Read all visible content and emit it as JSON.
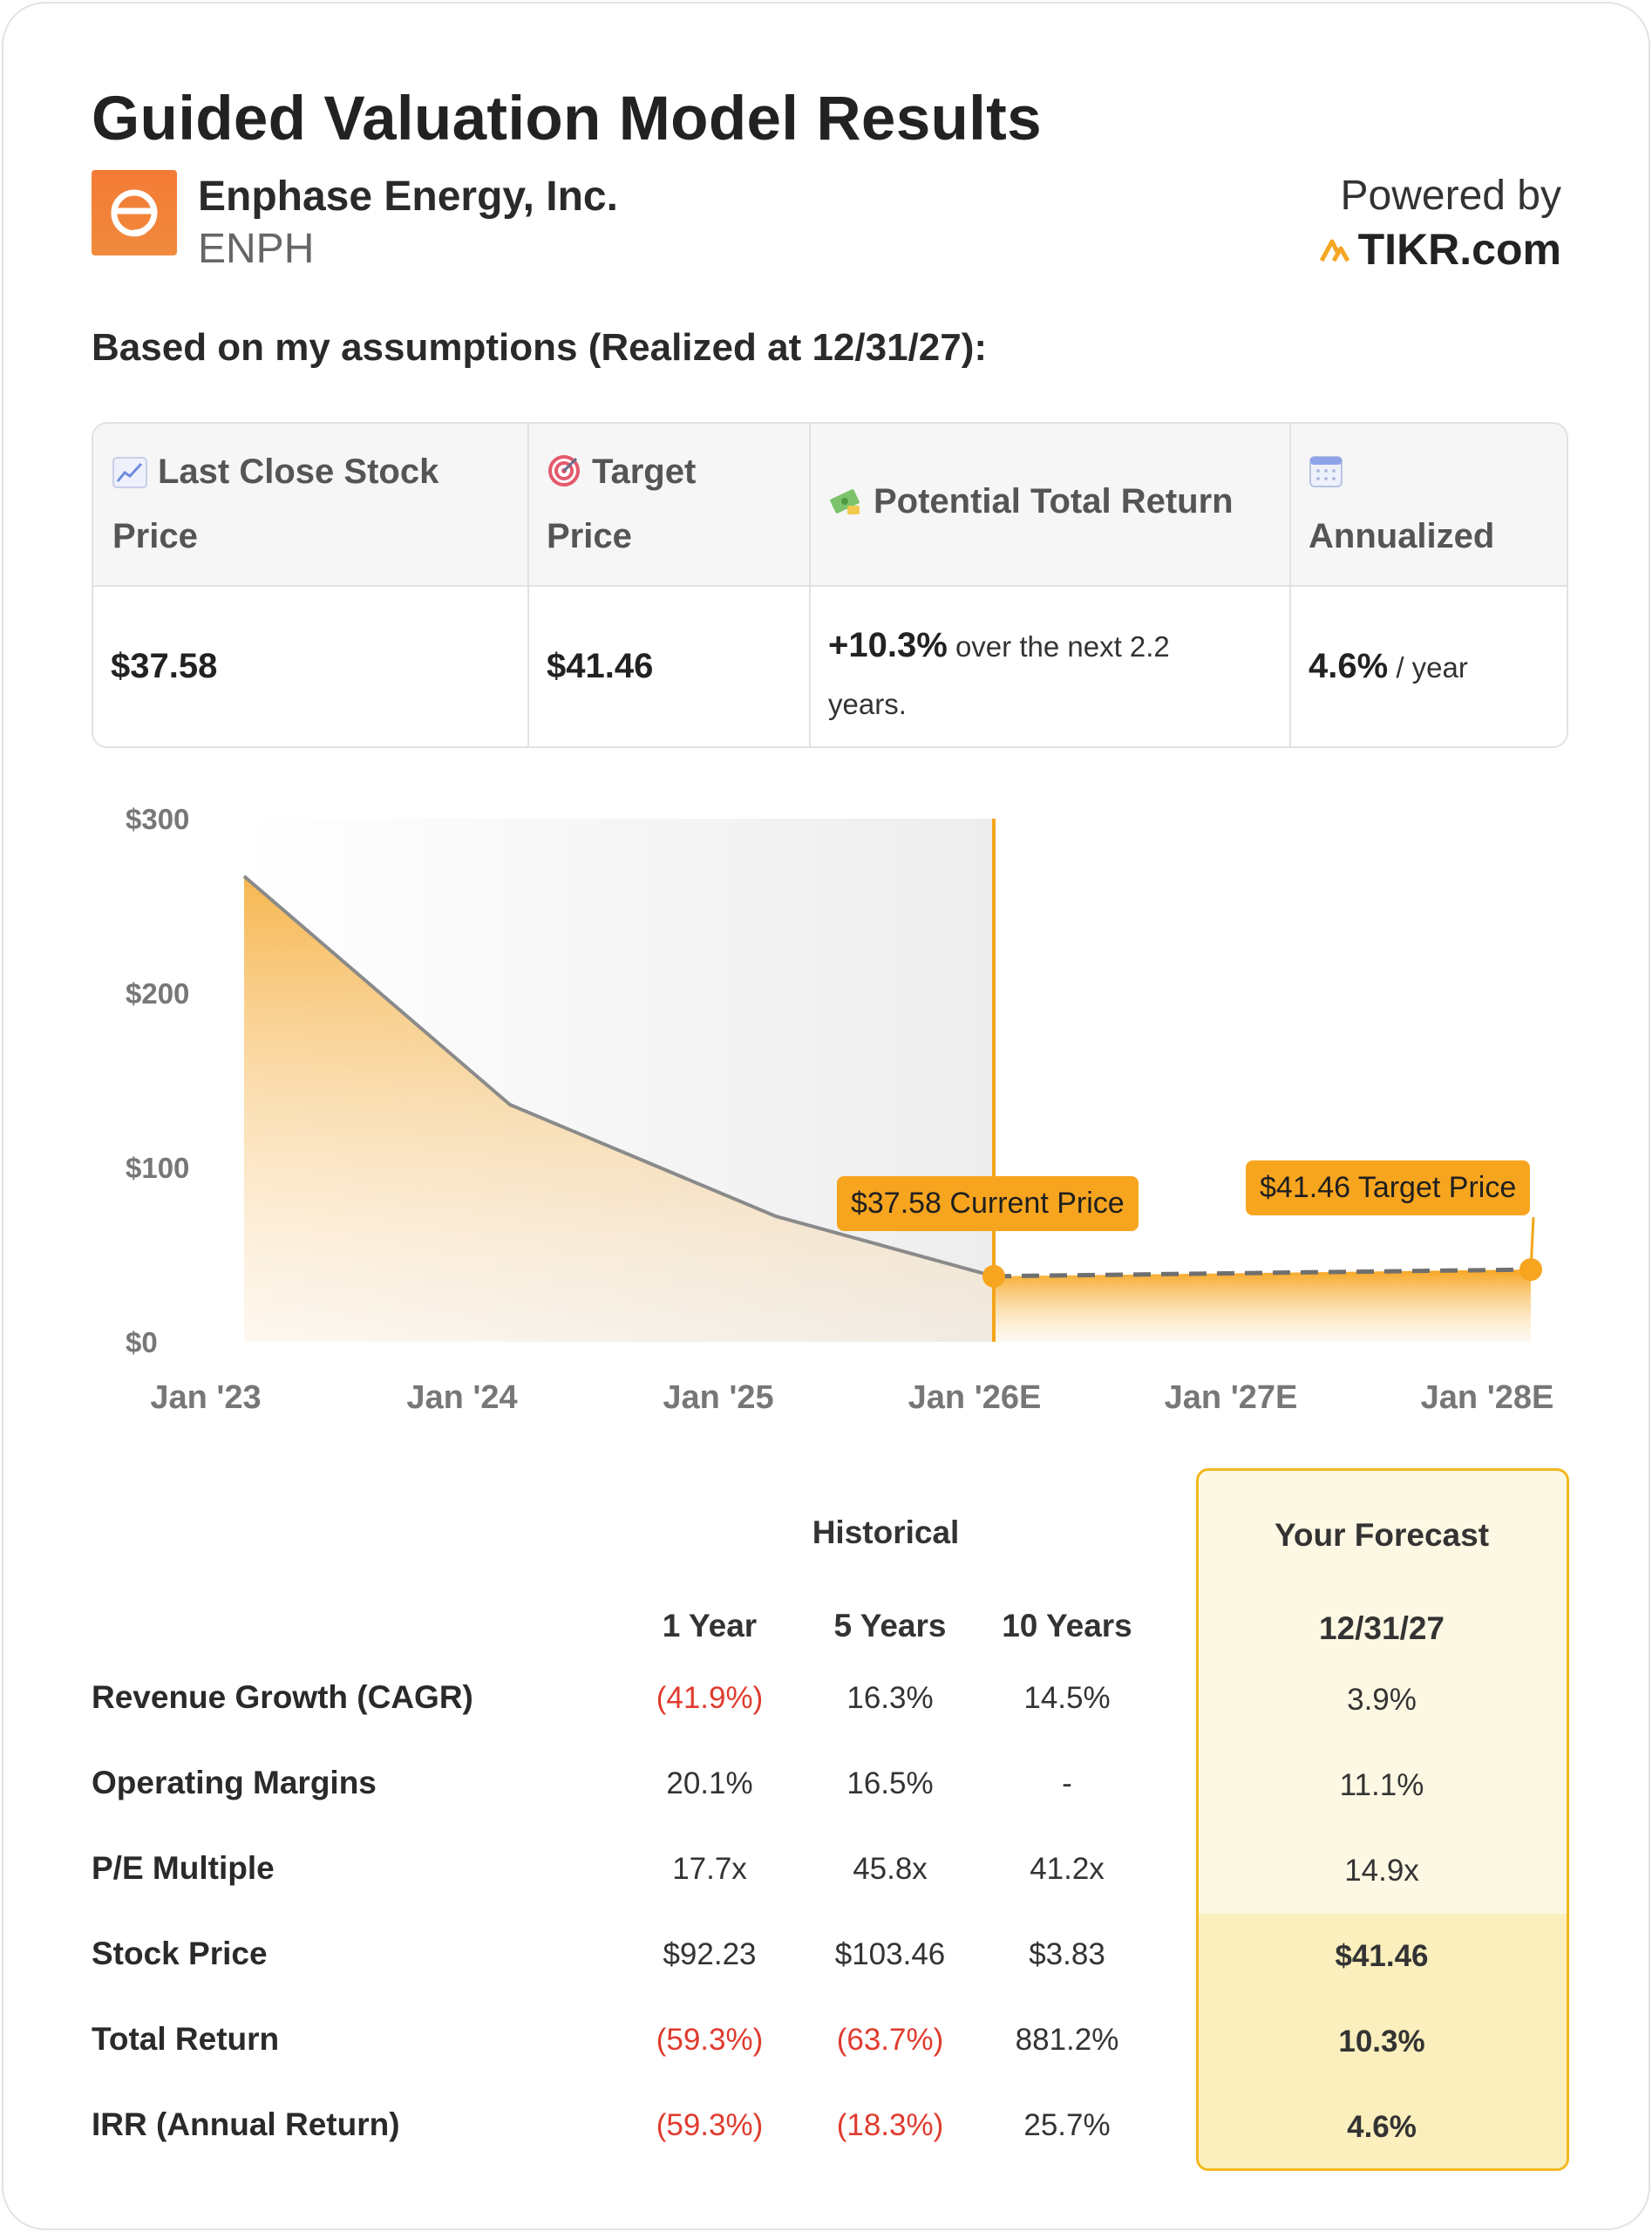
{
  "header": {
    "title": "Guided Valuation Model Results",
    "company_name": "Enphase Energy, Inc.",
    "ticker": "ENPH",
    "powered_by": "Powered by",
    "brand": "TIKR.com",
    "logo_icon": "enphase-logo-icon",
    "brand_icon": "tikr-logo-icon"
  },
  "assumptions_heading": "Based on my assumptions (Realized at 12/31/27):",
  "summary": {
    "headers": [
      {
        "icon": "line-chart-icon",
        "line1": "Last Close Stock",
        "line2": "Price"
      },
      {
        "icon": "target-icon",
        "line1": "Target",
        "line2": "Price"
      },
      {
        "icon": "money-icon",
        "line1": "Potential Total Return",
        "line2": ""
      },
      {
        "icon": "calendar-icon",
        "line1": "",
        "line2": "Annualized"
      }
    ],
    "last_close": "$37.58",
    "target_price": "$41.46",
    "total_return_value": "+10.3%",
    "total_return_suffix": " over the next 2.2",
    "total_return_suffix2": "years.",
    "annualized_value": "4.6%",
    "annualized_suffix": " / year"
  },
  "chart_data": {
    "type": "area",
    "title": "",
    "xlabel": "",
    "ylabel": "",
    "ylim": [
      0,
      300
    ],
    "y_ticks": [
      "$300",
      "$200",
      "$100",
      "$0"
    ],
    "y_tick_values": [
      300,
      200,
      100,
      0
    ],
    "x_ticks": [
      "Jan '23",
      "Jan '24",
      "Jan '25",
      "Jan '26E",
      "Jan '27E",
      "Jan '28E"
    ],
    "x_tick_values": [
      2023.0,
      2024.0,
      2025.0,
      2026.0,
      2027.0,
      2028.0
    ],
    "x_range": [
      2023.15,
      2027.99
    ],
    "series": [
      {
        "name": "Historical",
        "x": [
          2023.15,
          2024.15,
          2025.15,
          2025.97
        ],
        "values": [
          267,
          136,
          72,
          37.58
        ]
      },
      {
        "name": "Forecast",
        "x": [
          2025.97,
          2027.99
        ],
        "values": [
          37.58,
          41.46
        ]
      }
    ],
    "current_x": 2025.97,
    "annotations": [
      {
        "text": "$37.58 Current Price",
        "x": 2025.97,
        "y": 37.58
      },
      {
        "text": "$41.46 Target Price",
        "x": 2027.99,
        "y": 41.46
      }
    ]
  },
  "metrics": {
    "historical_heading": "Historical",
    "forecast_heading": "Your Forecast",
    "columns": [
      "1 Year",
      "5 Years",
      "10 Years"
    ],
    "forecast_column": "12/31/27",
    "rows": [
      {
        "label": "Revenue Growth (CAGR)",
        "values": [
          "(41.9%)",
          "16.3%",
          "14.5%"
        ],
        "forecast": "3.9%"
      },
      {
        "label": "Operating Margins",
        "values": [
          "20.1%",
          "16.5%",
          "-"
        ],
        "forecast": "11.1%"
      },
      {
        "label": "P/E Multiple",
        "values": [
          "17.7x",
          "45.8x",
          "41.2x"
        ],
        "forecast": "14.9x"
      },
      {
        "label": "Stock Price",
        "values": [
          "$92.23",
          "$103.46",
          "$3.83"
        ],
        "forecast": "$41.46"
      },
      {
        "label": "Total Return",
        "values": [
          "(59.3%)",
          "(63.7%)",
          "881.2%"
        ],
        "forecast": "10.3%"
      },
      {
        "label": "IRR (Annual Return)",
        "values": [
          "(59.3%)",
          "(18.3%)",
          "25.7%"
        ],
        "forecast": "4.6%"
      }
    ]
  },
  "colors": {
    "accent": "#f7a51f",
    "negative": "#e03b2f",
    "forecast_bg": "#fdf8e3",
    "forecast_border": "#f3b81e"
  }
}
